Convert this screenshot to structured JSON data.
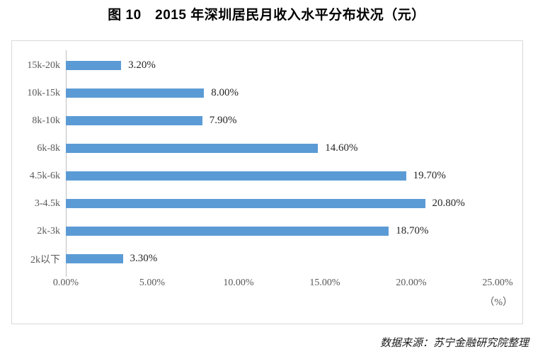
{
  "title": "图 10　2015 年深圳居民月收入水平分布状况（元）",
  "source_note": "数据来源：苏宁金融研究院整理",
  "chart_data": {
    "type": "bar",
    "orientation": "horizontal",
    "title": "图 10 2015 年深圳居民月收入水平分布状况（元）",
    "categories": [
      "15k-20k",
      "10k-15k",
      "8k-10k",
      "6k-8k",
      "4.5k-6k",
      "3-4.5k",
      "2k-3k",
      "2k以下"
    ],
    "values": [
      3.2,
      8.0,
      7.9,
      14.6,
      19.7,
      20.8,
      18.7,
      3.3
    ],
    "data_labels": [
      "3.20%",
      "8.00%",
      "7.90%",
      "14.60%",
      "19.70%",
      "20.80%",
      "18.70%",
      "3.30%"
    ],
    "xlim": [
      0,
      25
    ],
    "xtick_labels": [
      "0.00%",
      "5.00%",
      "10.00%",
      "15.00%",
      "20.00%",
      "25.00%"
    ],
    "xtick_values": [
      0,
      5,
      10,
      15,
      20,
      25
    ],
    "x_unit_label": "（%）",
    "xlabel": "",
    "ylabel": "",
    "grid": false,
    "legend": false,
    "bar_color": "#5b9bd5",
    "axis_color": "#bfbfbf",
    "border_color": "#d9d9d9",
    "label_color": "#595959",
    "value_label_color": "#262626"
  }
}
